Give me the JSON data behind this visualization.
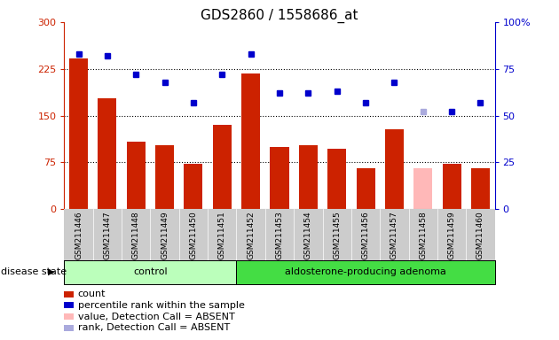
{
  "title": "GDS2860 / 1558686_at",
  "samples": [
    "GSM211446",
    "GSM211447",
    "GSM211448",
    "GSM211449",
    "GSM211450",
    "GSM211451",
    "GSM211452",
    "GSM211453",
    "GSM211454",
    "GSM211455",
    "GSM211456",
    "GSM211457",
    "GSM211458",
    "GSM211459",
    "GSM211460"
  ],
  "counts": [
    242,
    178,
    108,
    103,
    72,
    135,
    218,
    100,
    103,
    97,
    65,
    128,
    65,
    72,
    65
  ],
  "percentile_ranks": [
    83,
    82,
    72,
    68,
    57,
    72,
    83,
    62,
    62,
    63,
    57,
    68,
    52,
    52,
    57
  ],
  "absent_bar_idx": [
    12
  ],
  "absent_rank_idx": [
    12
  ],
  "control_count": 6,
  "left_ylim": [
    0,
    300
  ],
  "right_ylim": [
    0,
    100
  ],
  "left_yticks": [
    0,
    75,
    150,
    225,
    300
  ],
  "right_yticks": [
    0,
    25,
    50,
    75,
    100
  ],
  "hgrid_vals": [
    75,
    150,
    225
  ],
  "bar_color": "#cc2200",
  "bar_color_absent": "#ffb8b8",
  "dot_color": "#0000cc",
  "dot_color_absent": "#aaaadd",
  "bg_plot": "#ffffff",
  "bg_sample": "#cccccc",
  "bg_control": "#bbffbb",
  "bg_adenoma": "#44dd44",
  "title_fontsize": 11,
  "tick_fontsize": 8,
  "label_fontsize": 8,
  "legend_fontsize": 8
}
